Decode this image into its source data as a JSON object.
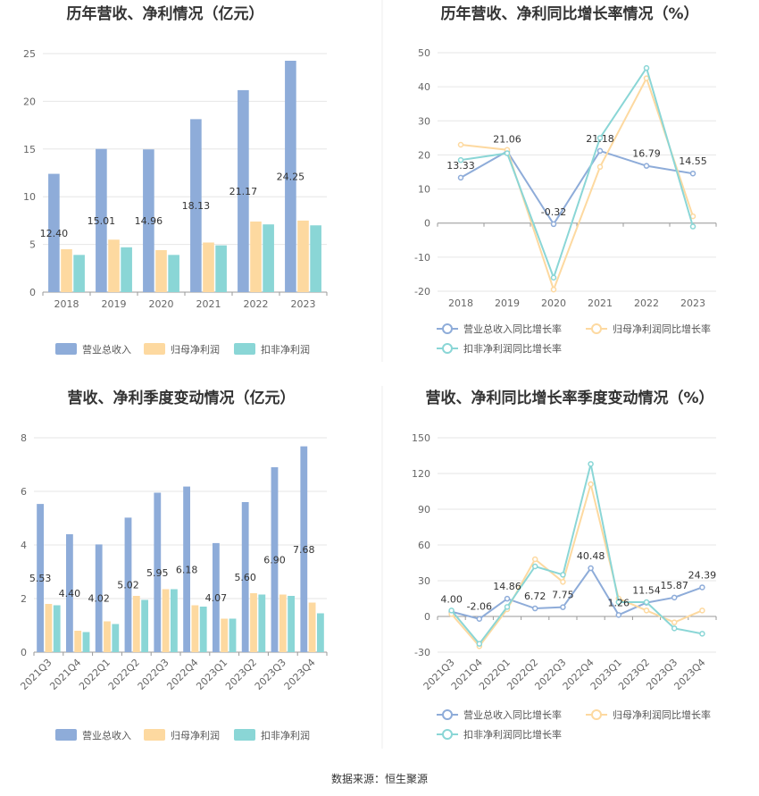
{
  "source": "数据来源：恒生聚源",
  "colors": {
    "revenue": "#8eacd9",
    "netprofit": "#fdd9a0",
    "deducted": "#8ad6d6",
    "revenue_line": "#8eacd9",
    "netprofit_line": "#fdd9a0",
    "deducted_line": "#8ad6d6"
  },
  "chart_data": [
    {
      "type": "bar",
      "title": "历年营收、净利情况（亿元）",
      "categories": [
        "2018",
        "2019",
        "2020",
        "2021",
        "2022",
        "2023"
      ],
      "ylim": [
        0,
        25
      ],
      "yticks": [
        0,
        5,
        10,
        15,
        20,
        25
      ],
      "series": [
        {
          "name": "营业总收入",
          "values": [
            12.4,
            15.01,
            14.96,
            18.13,
            21.17,
            24.25
          ]
        },
        {
          "name": "归母净利润",
          "values": [
            4.5,
            5.5,
            4.4,
            5.2,
            7.4,
            7.5
          ]
        },
        {
          "name": "扣非净利润",
          "values": [
            3.9,
            4.7,
            3.9,
            4.9,
            7.1,
            7.0
          ]
        }
      ],
      "data_labels": [
        "12.40",
        "15.01",
        "14.96",
        "18.13",
        "21.17",
        "24.25"
      ],
      "grid": true,
      "legend": "bottom"
    },
    {
      "type": "line",
      "title": "历年营收、净利同比增长率情况（%）",
      "categories": [
        "2018",
        "2019",
        "2020",
        "2021",
        "2022",
        "2023"
      ],
      "ylim": [
        -20,
        50
      ],
      "yticks": [
        -20,
        -10,
        0,
        10,
        20,
        30,
        40,
        50
      ],
      "series": [
        {
          "name": "营业总收入同比增长率",
          "values": [
            13.33,
            21.06,
            -0.32,
            21.18,
            16.79,
            14.55
          ]
        },
        {
          "name": "归母净利润同比增长率",
          "values": [
            23.0,
            21.5,
            -19.5,
            16.5,
            42.5,
            2.0
          ]
        },
        {
          "name": "扣非净利润同比增长率",
          "values": [
            18.5,
            20.5,
            -16.0,
            25.0,
            45.5,
            -1.0
          ]
        }
      ],
      "data_labels": [
        "13.33",
        "21.06",
        "-0.32",
        "21.18",
        "16.79",
        "14.55"
      ],
      "grid": true,
      "legend": "bottom"
    },
    {
      "type": "bar",
      "title": "营收、净利季度变动情况（亿元）",
      "categories": [
        "2021Q3",
        "2021Q4",
        "2022Q1",
        "2022Q2",
        "2022Q3",
        "2022Q4",
        "2023Q1",
        "2023Q2",
        "2023Q3",
        "2023Q4"
      ],
      "ylim": [
        0,
        8
      ],
      "yticks": [
        0,
        2,
        4,
        6,
        8
      ],
      "series": [
        {
          "name": "营业总收入",
          "values": [
            5.53,
            4.4,
            4.02,
            5.02,
            5.95,
            6.18,
            4.07,
            5.6,
            6.9,
            7.68
          ]
        },
        {
          "name": "归母净利润",
          "values": [
            1.8,
            0.8,
            1.15,
            2.1,
            2.35,
            1.75,
            1.25,
            2.2,
            2.15,
            1.85
          ]
        },
        {
          "name": "扣非净利润",
          "values": [
            1.75,
            0.75,
            1.05,
            1.95,
            2.35,
            1.7,
            1.25,
            2.15,
            2.1,
            1.45
          ]
        }
      ],
      "data_labels": [
        "5.53",
        "4.40",
        "4.02",
        "5.02",
        "5.95",
        "6.18",
        "4.07",
        "5.60",
        "6.90",
        "7.68"
      ],
      "grid": true,
      "legend": "bottom"
    },
    {
      "type": "line",
      "title": "营收、净利同比增长率季度变动情况（%）",
      "categories": [
        "2021Q3",
        "2021Q4",
        "2022Q1",
        "2022Q2",
        "2022Q3",
        "2022Q4",
        "2023Q1",
        "2023Q2",
        "2023Q3",
        "2023Q4"
      ],
      "ylim": [
        -30,
        150
      ],
      "yticks": [
        -30,
        0,
        30,
        60,
        90,
        120,
        150
      ],
      "series": [
        {
          "name": "营业总收入同比增长率",
          "values": [
            4.0,
            -2.06,
            14.86,
            6.72,
            7.75,
            40.48,
            1.26,
            11.54,
            15.87,
            24.39
          ]
        },
        {
          "name": "归母净利润同比增长率",
          "values": [
            2.0,
            -25.0,
            6.0,
            48.0,
            29.0,
            111.0,
            15.0,
            5.0,
            -5.0,
            5.0
          ]
        },
        {
          "name": "扣非净利润同比增长率",
          "values": [
            5.0,
            -23.0,
            8.0,
            42.0,
            35.0,
            128.0,
            12.0,
            12.0,
            -10.0,
            -14.5
          ]
        }
      ],
      "data_labels": [
        "4.00",
        "-2.06",
        "14.86",
        "6.72",
        "7.75",
        "40.48",
        "1.26",
        "11.54",
        "15.87",
        "24.39"
      ],
      "grid": true,
      "legend": "bottom"
    }
  ]
}
